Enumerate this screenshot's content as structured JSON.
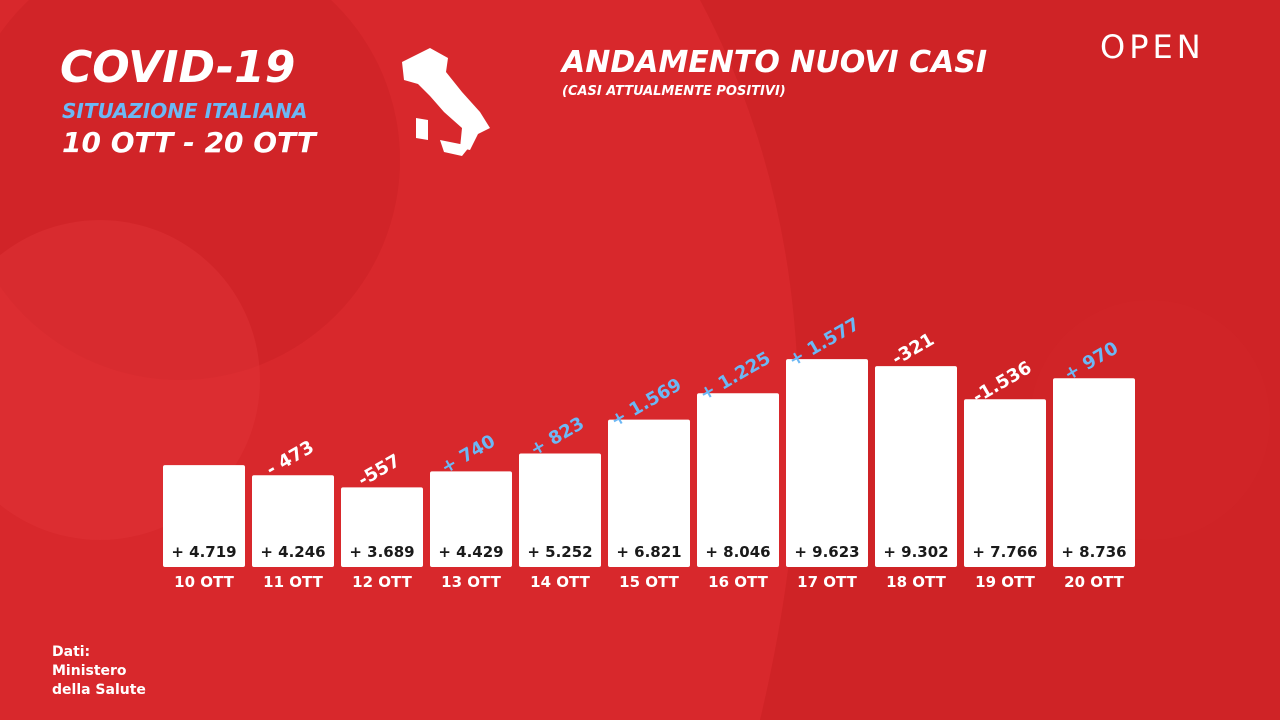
{
  "header": {
    "title": "COVID-19",
    "subtitle": "SITUAZIONE ITALIANA",
    "period": "10 OTT - 20 OTT"
  },
  "brand": "OPEN",
  "source": [
    "Dati:",
    "Ministero",
    "della Salute"
  ],
  "chart_data": {
    "type": "bar",
    "title": "ANDAMENTO NUOVI CASI",
    "subtitle": "(CASI ATTUALMENTE POSITIVI)",
    "categories": [
      "10 OTT",
      "11 OTT",
      "12 OTT",
      "13 OTT",
      "14 OTT",
      "15 OTT",
      "16 OTT",
      "17 OTT",
      "18 OTT",
      "19 OTT",
      "20 OTT"
    ],
    "values": [
      4719,
      4246,
      3689,
      4429,
      5252,
      6821,
      8046,
      9623,
      9302,
      7766,
      8736
    ],
    "value_labels": [
      "+ 4.719",
      "+ 4.246",
      "+ 3.689",
      "+ 4.429",
      "+ 5.252",
      "+ 6.821",
      "+ 8.046",
      "+ 9.623",
      "+ 9.302",
      "+ 7.766",
      "+ 8.736"
    ],
    "color": "#ffffff",
    "changes": {
      "values": [
        null,
        -473,
        -557,
        740,
        823,
        1569,
        1225,
        1577,
        -321,
        -1536,
        970
      ],
      "value_labels": [
        null,
        "- 473",
        "-557",
        "+ 740",
        "+ 823",
        "+ 1.569",
        "+ 1.225",
        "+ 1.577",
        "-321",
        "-1.536",
        "+ 970"
      ],
      "positive_color": "#6cb8f5",
      "negative_color": "#ffffff"
    }
  }
}
